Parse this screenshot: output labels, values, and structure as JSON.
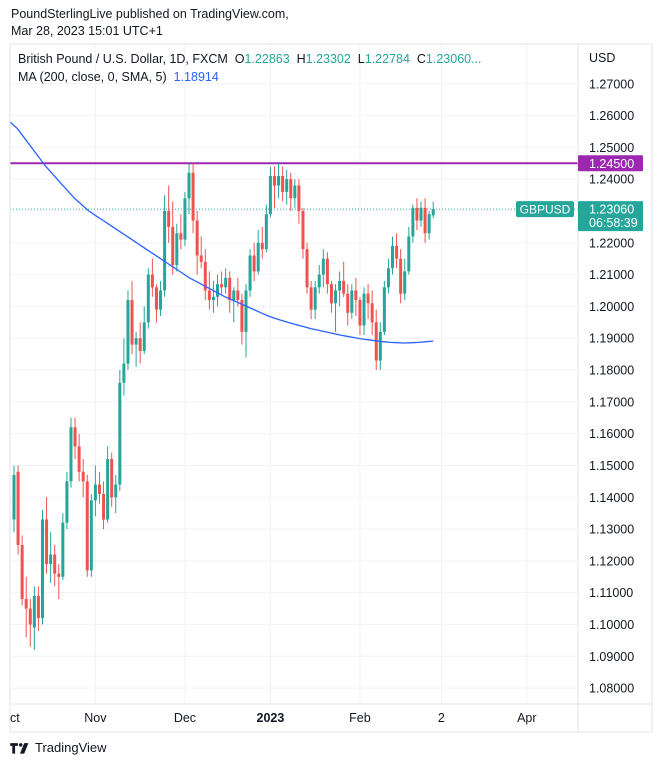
{
  "header": {
    "line1": "PoundSterlingLive published on TradingView.com,",
    "line2": "Mar 28, 2023 15:01 UTC+1"
  },
  "legend": {
    "symbol": "British Pound / U.S. Dollar, 1D, FXCM",
    "o_label": "O",
    "o": "1.22863",
    "h_label": "H",
    "h": "1.23302",
    "l_label": "L",
    "l": "1.22784",
    "c_label": "C",
    "c": "1.23060",
    "ellipsis": "...",
    "ma_label": "MA (200, close, 0, SMA, 5)",
    "ma_value": "1.18914"
  },
  "axis": {
    "currency": "USD",
    "hline_label": "1.24500",
    "symbol_tag": "GBPUSD",
    "price_tag": "1.23060",
    "countdown": "06:58:39"
  },
  "footer": {
    "brand": "TradingView"
  },
  "colors": {
    "up": "#26a69a",
    "down": "#ef5350",
    "ma": "#2962ff",
    "hline": "#9c27b0",
    "grid": "#f0f3fa",
    "text": "#131722"
  },
  "chart_data": {
    "type": "candlestick",
    "title": "British Pound / U.S. Dollar, 1D, FXCM",
    "ylabel": "USD",
    "ylim": [
      1.075,
      1.2825
    ],
    "y_ticks": [
      1.08,
      1.09,
      1.1,
      1.11,
      1.12,
      1.13,
      1.14,
      1.15,
      1.16,
      1.17,
      1.18,
      1.19,
      1.2,
      1.21,
      1.22,
      1.23,
      1.24,
      1.25,
      1.26,
      1.27
    ],
    "y_tick_labels": [
      "1.08000",
      "1.09000",
      "1.10000",
      "1.11000",
      "1.12000",
      "1.13000",
      "1.14000",
      "1.15000",
      "1.16000",
      "1.17000",
      "1.18000",
      "1.19000",
      "1.20000",
      "1.21000",
      "1.22000",
      "1.23000",
      "1.24000",
      "1.25000",
      "1.26000",
      "1.27000"
    ],
    "x_ticks": [
      {
        "label": "ct",
        "index": -1
      },
      {
        "label": "Nov",
        "index": 20
      },
      {
        "label": "Dec",
        "index": 42
      },
      {
        "label": "2023",
        "index": 63
      },
      {
        "label": "Feb",
        "index": 85
      },
      {
        "label": "2",
        "index": 105
      },
      {
        "label": "Apr",
        "index": 126
      }
    ],
    "horizontal_line": 1.245,
    "last_close": 1.2306,
    "candles": [
      [
        1.133,
        1.15,
        1.129,
        1.147
      ],
      [
        1.148,
        1.15,
        1.122,
        1.125
      ],
      [
        1.125,
        1.128,
        1.106,
        1.108
      ],
      [
        1.108,
        1.115,
        1.096,
        1.105
      ],
      [
        1.105,
        1.108,
        1.093,
        1.1
      ],
      [
        1.099,
        1.112,
        1.092,
        1.109
      ],
      [
        1.109,
        1.112,
        1.098,
        1.102
      ],
      [
        1.102,
        1.136,
        1.1,
        1.133
      ],
      [
        1.133,
        1.14,
        1.116,
        1.119
      ],
      [
        1.119,
        1.129,
        1.113,
        1.122
      ],
      [
        1.122,
        1.125,
        1.112,
        1.116
      ],
      [
        1.116,
        1.119,
        1.108,
        1.115
      ],
      [
        1.115,
        1.135,
        1.114,
        1.132
      ],
      [
        1.132,
        1.148,
        1.13,
        1.145
      ],
      [
        1.145,
        1.165,
        1.143,
        1.162
      ],
      [
        1.162,
        1.165,
        1.152,
        1.156
      ],
      [
        1.156,
        1.16,
        1.145,
        1.148
      ],
      [
        1.148,
        1.152,
        1.14,
        1.145
      ],
      [
        1.145,
        1.147,
        1.115,
        1.117
      ],
      [
        1.117,
        1.141,
        1.115,
        1.139
      ],
      [
        1.139,
        1.15,
        1.134,
        1.144
      ],
      [
        1.144,
        1.148,
        1.138,
        1.141
      ],
      [
        1.141,
        1.145,
        1.13,
        1.133
      ],
      [
        1.133,
        1.156,
        1.132,
        1.152
      ],
      [
        1.152,
        1.154,
        1.137,
        1.14
      ],
      [
        1.14,
        1.147,
        1.135,
        1.144
      ],
      [
        1.144,
        1.18,
        1.142,
        1.176
      ],
      [
        1.176,
        1.19,
        1.172,
        1.182
      ],
      [
        1.182,
        1.205,
        1.18,
        1.202
      ],
      [
        1.202,
        1.208,
        1.185,
        1.188
      ],
      [
        1.188,
        1.192,
        1.181,
        1.19
      ],
      [
        1.19,
        1.195,
        1.182,
        1.186
      ],
      [
        1.186,
        1.2,
        1.185,
        1.195
      ],
      [
        1.195,
        1.212,
        1.193,
        1.21
      ],
      [
        1.21,
        1.215,
        1.203,
        1.206
      ],
      [
        1.206,
        1.207,
        1.195,
        1.199
      ],
      [
        1.199,
        1.208,
        1.197,
        1.205
      ],
      [
        1.205,
        1.235,
        1.203,
        1.23
      ],
      [
        1.23,
        1.238,
        1.22,
        1.225
      ],
      [
        1.225,
        1.233,
        1.21,
        1.213
      ],
      [
        1.213,
        1.226,
        1.211,
        1.223
      ],
      [
        1.223,
        1.229,
        1.218,
        1.221
      ],
      [
        1.221,
        1.236,
        1.219,
        1.234
      ],
      [
        1.234,
        1.245,
        1.229,
        1.242
      ],
      [
        1.242,
        1.245,
        1.223,
        1.227
      ],
      [
        1.227,
        1.23,
        1.21,
        1.216
      ],
      [
        1.216,
        1.222,
        1.212,
        1.214
      ],
      [
        1.214,
        1.218,
        1.202,
        1.205
      ],
      [
        1.205,
        1.211,
        1.199,
        1.202
      ],
      [
        1.202,
        1.208,
        1.198,
        1.203
      ],
      [
        1.203,
        1.21,
        1.2,
        1.207
      ],
      [
        1.207,
        1.211,
        1.204,
        1.206
      ],
      [
        1.206,
        1.212,
        1.204,
        1.209
      ],
      [
        1.209,
        1.211,
        1.198,
        1.202
      ],
      [
        1.202,
        1.206,
        1.195,
        1.205
      ],
      [
        1.205,
        1.209,
        1.2,
        1.202
      ],
      [
        1.202,
        1.204,
        1.188,
        1.192
      ],
      [
        1.192,
        1.207,
        1.184,
        1.205
      ],
      [
        1.205,
        1.218,
        1.203,
        1.216
      ],
      [
        1.216,
        1.22,
        1.208,
        1.211
      ],
      [
        1.211,
        1.224,
        1.21,
        1.22
      ],
      [
        1.22,
        1.225,
        1.215,
        1.218
      ],
      [
        1.218,
        1.232,
        1.217,
        1.229
      ],
      [
        1.229,
        1.244,
        1.228,
        1.241
      ],
      [
        1.241,
        1.244,
        1.231,
        1.238
      ],
      [
        1.238,
        1.245,
        1.234,
        1.241
      ],
      [
        1.241,
        1.244,
        1.233,
        1.236
      ],
      [
        1.236,
        1.243,
        1.232,
        1.24
      ],
      [
        1.24,
        1.242,
        1.23,
        1.234
      ],
      [
        1.234,
        1.24,
        1.231,
        1.238
      ],
      [
        1.238,
        1.24,
        1.226,
        1.23
      ],
      [
        1.23,
        1.231,
        1.215,
        1.218
      ],
      [
        1.218,
        1.22,
        1.204,
        1.206
      ],
      [
        1.206,
        1.208,
        1.196,
        1.199
      ],
      [
        1.199,
        1.208,
        1.196,
        1.206
      ],
      [
        1.206,
        1.213,
        1.204,
        1.21
      ],
      [
        1.21,
        1.218,
        1.206,
        1.215
      ],
      [
        1.215,
        1.217,
        1.204,
        1.207
      ],
      [
        1.207,
        1.208,
        1.198,
        1.201
      ],
      [
        1.201,
        1.207,
        1.192,
        1.205
      ],
      [
        1.205,
        1.211,
        1.2,
        1.208
      ],
      [
        1.208,
        1.214,
        1.203,
        1.204
      ],
      [
        1.204,
        1.207,
        1.194,
        1.198
      ],
      [
        1.198,
        1.207,
        1.196,
        1.205
      ],
      [
        1.205,
        1.209,
        1.197,
        1.202
      ],
      [
        1.202,
        1.203,
        1.191,
        1.194
      ],
      [
        1.194,
        1.206,
        1.191,
        1.204
      ],
      [
        1.204,
        1.207,
        1.196,
        1.201
      ],
      [
        1.201,
        1.205,
        1.191,
        1.195
      ],
      [
        1.195,
        1.199,
        1.18,
        1.183
      ],
      [
        1.183,
        1.195,
        1.18,
        1.192
      ],
      [
        1.192,
        1.208,
        1.191,
        1.206
      ],
      [
        1.206,
        1.215,
        1.204,
        1.212
      ],
      [
        1.212,
        1.222,
        1.21,
        1.219
      ],
      [
        1.219,
        1.223,
        1.212,
        1.215
      ],
      [
        1.215,
        1.218,
        1.201,
        1.204
      ],
      [
        1.204,
        1.215,
        1.202,
        1.211
      ],
      [
        1.211,
        1.225,
        1.21,
        1.222
      ],
      [
        1.222,
        1.232,
        1.22,
        1.231
      ],
      [
        1.231,
        1.234,
        1.224,
        1.227
      ],
      [
        1.227,
        1.233,
        1.225,
        1.231
      ],
      [
        1.231,
        1.234,
        1.22,
        1.223
      ],
      [
        1.223,
        1.23,
        1.221,
        1.229
      ],
      [
        1.2286,
        1.233,
        1.2278,
        1.2306
      ]
    ],
    "ma": [
      1.258,
      1.256,
      1.253,
      1.25,
      1.247,
      1.244,
      1.2415,
      1.239,
      1.2365,
      1.234,
      1.232,
      1.23,
      1.2285,
      1.227,
      1.2255,
      1.224,
      1.2225,
      1.221,
      1.2195,
      1.218,
      1.2165,
      1.215,
      1.2135,
      1.212,
      1.2105,
      1.209,
      1.2078,
      1.2066,
      1.2054,
      1.2042,
      1.203,
      1.202,
      1.201,
      1.2,
      1.199,
      1.198,
      1.197,
      1.1962,
      1.1955,
      1.1948,
      1.1942,
      1.1936,
      1.193,
      1.1925,
      1.192,
      1.1915,
      1.191,
      1.1906,
      1.1902,
      1.1898,
      1.1895,
      1.1892,
      1.1889,
      1.1887,
      1.1886,
      1.1885,
      1.1886,
      1.1887,
      1.1889,
      1.1891
    ]
  }
}
